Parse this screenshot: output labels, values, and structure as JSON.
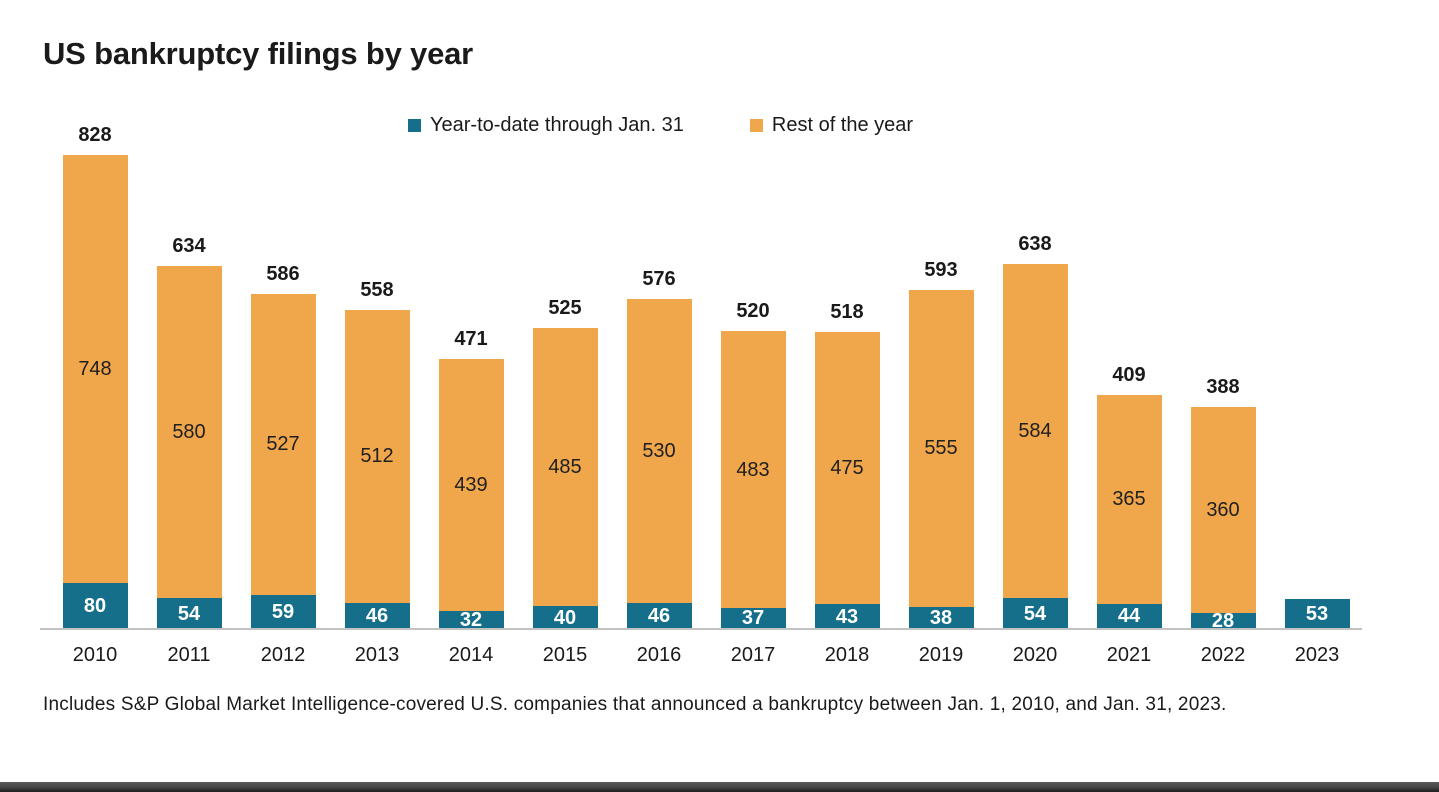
{
  "chart_data": {
    "type": "bar",
    "stacked": true,
    "title": "US bankruptcy filings by year",
    "categories": [
      "2010",
      "2011",
      "2012",
      "2013",
      "2014",
      "2015",
      "2016",
      "2017",
      "2018",
      "2019",
      "2020",
      "2021",
      "2022",
      "2023"
    ],
    "series": [
      {
        "name": "Year-to-date through Jan. 31",
        "color": "#156F8B",
        "values": [
          80,
          54,
          59,
          46,
          32,
          40,
          46,
          37,
          43,
          38,
          54,
          44,
          28,
          53
        ]
      },
      {
        "name": "Rest of the year",
        "color": "#F0A74C",
        "values": [
          748,
          580,
          527,
          512,
          439,
          485,
          530,
          483,
          475,
          555,
          584,
          365,
          360,
          null
        ]
      }
    ],
    "totals": [
      828,
      634,
      586,
      558,
      471,
      525,
      576,
      520,
      518,
      593,
      638,
      409,
      388,
      null
    ],
    "legend_position": "top",
    "grid": false,
    "ylim": [
      0,
      840
    ]
  },
  "footnote": "Includes S&P Global Market Intelligence-covered U.S. companies that announced a bankruptcy between Jan. 1, 2010, and Jan. 31, 2023.",
  "colors": {
    "ytd": "#156F8B",
    "rest": "#F0A74C",
    "axis_line": "#C2C2C2",
    "text": "#1A1A1A",
    "bottom_strip": "#3F3F3F"
  }
}
